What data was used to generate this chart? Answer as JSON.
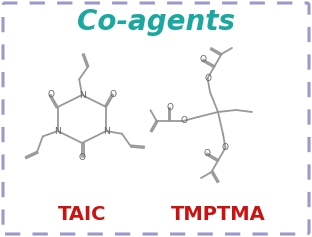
{
  "title": "Co-agents",
  "title_color": "#1aa8a0",
  "title_fontsize": 20,
  "background_color": "#ffffff",
  "border_color": "#9999cc",
  "label_taic": "TAIC",
  "label_tmptma": "TMPTMA",
  "label_color": "#cc1111",
  "label_fontsize": 14,
  "struct_color": "#999999",
  "atom_color": "#666666",
  "fig_width": 3.12,
  "fig_height": 2.37,
  "dpi": 100
}
